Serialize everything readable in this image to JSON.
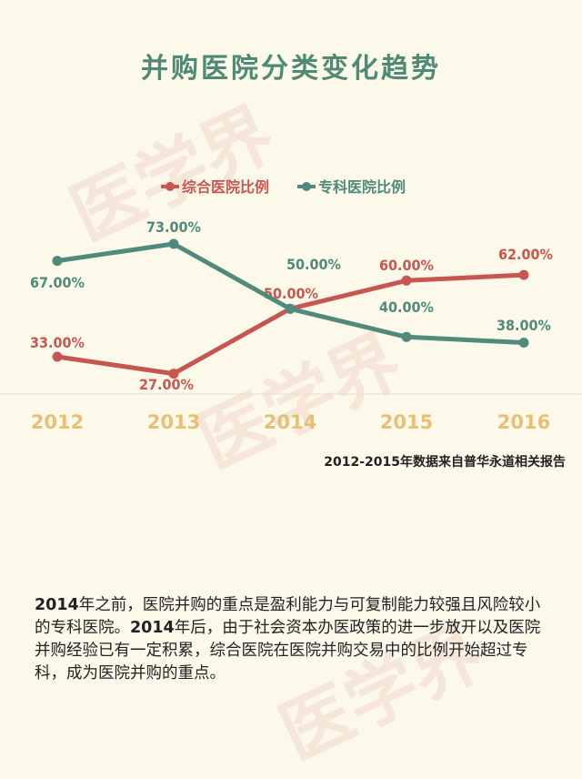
{
  "title": "并购医院分类变化趋势",
  "watermark": "医学界",
  "chart_data": {
    "type": "line",
    "title": "并购医院分类变化趋势",
    "categories": [
      "2012",
      "2013",
      "2014",
      "2015",
      "2016"
    ],
    "series": [
      {
        "name": "综合医院比例",
        "color": "#c85650",
        "values": [
          33,
          27,
          50,
          60,
          62
        ],
        "labels": [
          "33.00%",
          "27.00%",
          "50.00%",
          "60.00%",
          "62.00%"
        ]
      },
      {
        "name": "专科医院比例",
        "color": "#4f8a7c",
        "values": [
          67,
          73,
          50,
          40,
          38
        ],
        "labels": [
          "67.00%",
          "73.00%",
          "50.00%",
          "40.00%",
          "38.00%"
        ]
      }
    ],
    "ylim": [
      0,
      100
    ],
    "legend_position": "top",
    "x_tick_color": "#e8c074"
  },
  "source_note": "2012-2015年数据来自普华永道相关报告",
  "paragraph": {
    "parts": [
      {
        "bold": true,
        "text": "2014"
      },
      {
        "bold": false,
        "text": "年之前，医院并购的重点是盈利能力与可复制能力较强且风险较小的专科医院。"
      },
      {
        "bold": true,
        "text": "2014"
      },
      {
        "bold": false,
        "text": "年后，由于社会资本办医政策的进一步放开以及医院并购经验已有一定积累，综合医院在医院并购交易中的比例开始超过专科，成为医院并购的重点。"
      }
    ]
  }
}
